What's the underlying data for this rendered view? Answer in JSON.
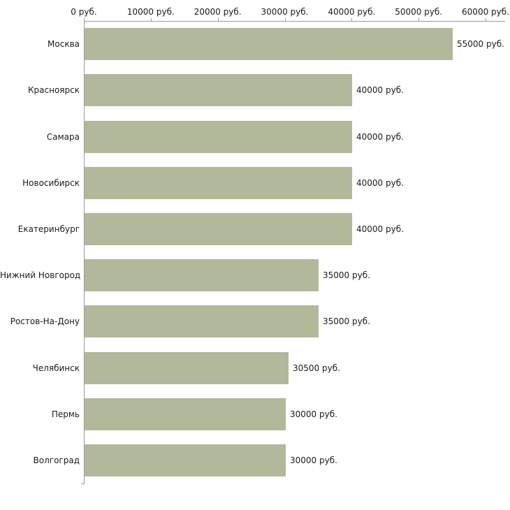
{
  "chart_data": {
    "type": "bar",
    "orientation": "horizontal",
    "title": "",
    "categories": [
      "Москва",
      "Красноярск",
      "Самара",
      "Новосибирск",
      "Екатеринбург",
      "Нижний Новгород",
      "Ростов-На-Дону",
      "Челябинск",
      "Пермь",
      "Волгоград"
    ],
    "values": [
      55000,
      40000,
      40000,
      40000,
      40000,
      35000,
      35000,
      30500,
      30000,
      30000
    ],
    "value_labels": [
      "55000 руб.",
      "40000 руб.",
      "40000 руб.",
      "40000 руб.",
      "40000 руб.",
      "35000 руб.",
      "35000 руб.",
      "30500 руб.",
      "30000 руб.",
      "30000 руб."
    ],
    "x_ticks": [
      "0 руб.",
      "10000 руб.",
      "20000 руб.",
      "30000 руб.",
      "40000 руб.",
      "50000 руб.",
      "60000 руб."
    ],
    "xlim": [
      0,
      60000
    ],
    "unit": "руб.",
    "bar_color": "#b2b89a",
    "axis_color": "#9a9a9a",
    "text_color": "#1a1a1a",
    "background": "#ffffff",
    "grid": false,
    "legend": "none"
  }
}
